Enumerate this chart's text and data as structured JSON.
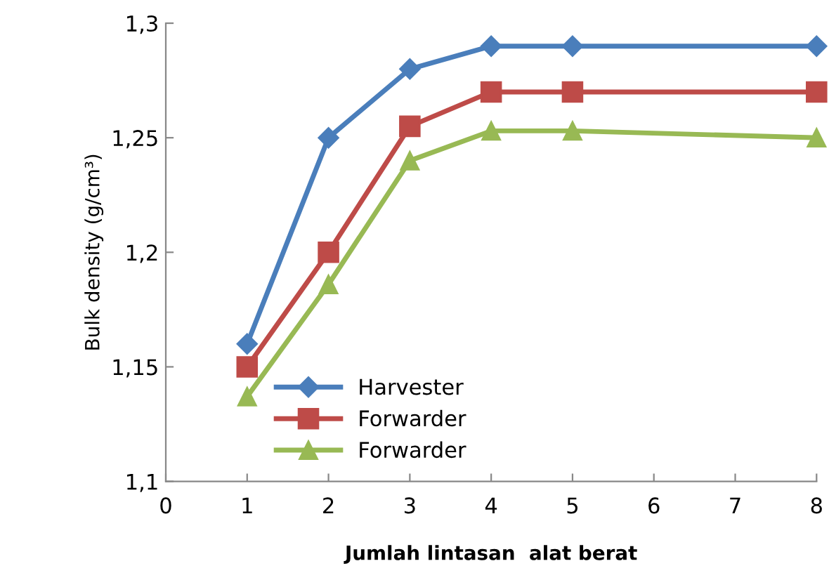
{
  "chart_data": {
    "type": "line",
    "xlabel": "Jumlah lintasan  alat berat",
    "ylabel": "Bulk density (g/cm³)",
    "x": [
      1,
      2,
      3,
      4,
      5,
      8
    ],
    "series": [
      {
        "name": "Harvester",
        "color": "#4a7ebb",
        "marker": "diamond",
        "values": [
          1.16,
          1.25,
          1.28,
          1.29,
          1.29,
          1.29
        ]
      },
      {
        "name": "Forwarder",
        "color": "#be4b48",
        "marker": "square",
        "values": [
          1.15,
          1.2,
          1.255,
          1.27,
          1.27,
          1.27
        ]
      },
      {
        "name": "Forwarder",
        "color": "#98b954",
        "marker": "triangle",
        "values": [
          1.137,
          1.186,
          1.24,
          1.253,
          1.253,
          1.25
        ]
      }
    ],
    "xlim": [
      0,
      8
    ],
    "xticks": [
      0,
      1,
      2,
      3,
      4,
      5,
      6,
      7,
      8
    ],
    "ylim": [
      1.1,
      1.3
    ],
    "yticks": [
      {
        "value": 1.1,
        "label": "1,1"
      },
      {
        "value": 1.15,
        "label": "1,15"
      },
      {
        "value": 1.2,
        "label": "1,2"
      },
      {
        "value": 1.25,
        "label": "1,25"
      },
      {
        "value": 1.3,
        "label": "1,3"
      }
    ],
    "grid": false,
    "legend": "bottom",
    "line_style": "solid"
  }
}
